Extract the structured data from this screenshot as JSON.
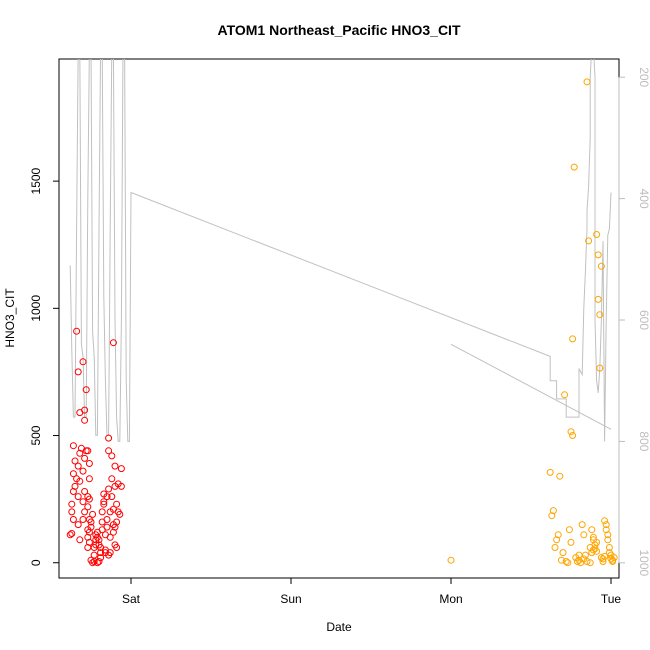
{
  "chart_data": {
    "type": "scatter",
    "title": "ATOM1 Northeast_Pacific HNO3_CIT",
    "xlabel": "Date",
    "ylabel": "HNO3_CIT",
    "x_range_days": [
      -0.45,
      3.05
    ],
    "ylim": [
      -60,
      1980
    ],
    "x_ticks": [
      {
        "value": 0,
        "label": "Sat"
      },
      {
        "value": 1,
        "label": "Sun"
      },
      {
        "value": 2,
        "label": "Mon"
      },
      {
        "value": 3,
        "label": "Tue"
      }
    ],
    "y_ticks": [
      0,
      500,
      1000,
      1500
    ],
    "secondary_axis": {
      "side": "right",
      "inverted": true,
      "ticks": [
        200,
        400,
        600,
        800,
        1000
      ],
      "ylim": [
        1025,
        170
      ],
      "color": "#bdbdbd"
    },
    "series": [
      {
        "color": "#ff0000",
        "points": [
          [
            -0.38,
            110
          ],
          [
            -0.37,
            115
          ],
          [
            -0.37,
            200
          ],
          [
            -0.36,
            170
          ],
          [
            -0.37,
            230
          ],
          [
            -0.36,
            280
          ],
          [
            -0.35,
            300
          ],
          [
            -0.34,
            330
          ],
          [
            -0.36,
            350
          ],
          [
            -0.35,
            400
          ],
          [
            -0.36,
            460
          ],
          [
            -0.34,
            910
          ],
          [
            -0.33,
            150
          ],
          [
            -0.32,
            90
          ],
          [
            -0.33,
            260
          ],
          [
            -0.32,
            320
          ],
          [
            -0.33,
            380
          ],
          [
            -0.32,
            430
          ],
          [
            -0.31,
            450
          ],
          [
            -0.32,
            590
          ],
          [
            -0.33,
            750
          ],
          [
            -0.3,
            170
          ],
          [
            -0.29,
            200
          ],
          [
            -0.3,
            240
          ],
          [
            -0.29,
            280
          ],
          [
            -0.3,
            360
          ],
          [
            -0.29,
            410
          ],
          [
            -0.28,
            440
          ],
          [
            -0.29,
            560
          ],
          [
            -0.29,
            600
          ],
          [
            -0.3,
            790
          ],
          [
            -0.28,
            680
          ],
          [
            -0.27,
            130
          ],
          [
            -0.26,
            170
          ],
          [
            -0.27,
            220
          ],
          [
            -0.26,
            250
          ],
          [
            -0.27,
            260
          ],
          [
            -0.26,
            330
          ],
          [
            -0.27,
            440
          ],
          [
            -0.26,
            390
          ],
          [
            -0.27,
            60
          ],
          [
            -0.26,
            80
          ],
          [
            -0.27,
            100
          ],
          [
            -0.26,
            120
          ],
          [
            -0.25,
            10
          ],
          [
            -0.25,
            140
          ],
          [
            -0.25,
            160
          ],
          [
            -0.24,
            190
          ],
          [
            -0.24,
            0
          ],
          [
            -0.23,
            5
          ],
          [
            -0.23,
            30
          ],
          [
            -0.23,
            60
          ],
          [
            -0.22,
            70
          ],
          [
            -0.22,
            90
          ],
          [
            -0.22,
            110
          ],
          [
            -0.21,
            100
          ],
          [
            -0.21,
            120
          ],
          [
            -0.21,
            0
          ],
          [
            -0.2,
            5
          ],
          [
            -0.2,
            70
          ],
          [
            -0.2,
            90
          ],
          [
            -0.19,
            20
          ],
          [
            -0.19,
            40
          ],
          [
            -0.19,
            60
          ],
          [
            -0.18,
            130
          ],
          [
            -0.18,
            160
          ],
          [
            -0.18,
            200
          ],
          [
            -0.17,
            230
          ],
          [
            -0.17,
            240
          ],
          [
            -0.17,
            270
          ],
          [
            -0.16,
            40
          ],
          [
            -0.16,
            50
          ],
          [
            -0.16,
            110
          ],
          [
            -0.15,
            140
          ],
          [
            -0.15,
            170
          ],
          [
            -0.15,
            260
          ],
          [
            -0.14,
            290
          ],
          [
            -0.14,
            440
          ],
          [
            -0.14,
            490
          ],
          [
            -0.14,
            30
          ],
          [
            -0.13,
            40
          ],
          [
            -0.13,
            100
          ],
          [
            -0.13,
            200
          ],
          [
            -0.12,
            260
          ],
          [
            -0.12,
            330
          ],
          [
            -0.12,
            420
          ],
          [
            -0.11,
            120
          ],
          [
            -0.11,
            150
          ],
          [
            -0.11,
            210
          ],
          [
            -0.1,
            70
          ],
          [
            -0.1,
            140
          ],
          [
            -0.1,
            300
          ],
          [
            -0.1,
            380
          ],
          [
            -0.11,
            865
          ],
          [
            -0.09,
            60
          ],
          [
            -0.09,
            160
          ],
          [
            -0.09,
            230
          ],
          [
            -0.08,
            200
          ],
          [
            -0.08,
            310
          ],
          [
            -0.07,
            190
          ],
          [
            -0.06,
            300
          ],
          [
            -0.06,
            370
          ]
        ]
      },
      {
        "color": "#ffa500",
        "points": [
          [
            2.0,
            10
          ],
          [
            2.62,
            355
          ],
          [
            2.63,
            185
          ],
          [
            2.64,
            205
          ],
          [
            2.65,
            60
          ],
          [
            2.66,
            90
          ],
          [
            2.67,
            110
          ],
          [
            2.68,
            340
          ],
          [
            2.69,
            10
          ],
          [
            2.7,
            40
          ],
          [
            2.71,
            660
          ],
          [
            2.72,
            5
          ],
          [
            2.73,
            0
          ],
          [
            2.74,
            130
          ],
          [
            2.75,
            80
          ],
          [
            2.75,
            515
          ],
          [
            2.76,
            500
          ],
          [
            2.76,
            880
          ],
          [
            2.77,
            1555
          ],
          [
            2.78,
            20
          ],
          [
            2.79,
            5
          ],
          [
            2.8,
            10
          ],
          [
            2.81,
            0
          ],
          [
            2.82,
            150
          ],
          [
            2.83,
            110
          ],
          [
            2.84,
            30
          ],
          [
            2.85,
            1890
          ],
          [
            2.86,
            1265
          ],
          [
            2.87,
            60
          ],
          [
            2.88,
            130
          ],
          [
            2.88,
            40
          ],
          [
            2.89,
            90
          ],
          [
            2.89,
            100
          ],
          [
            2.9,
            70
          ],
          [
            2.9,
            55
          ],
          [
            2.91,
            45
          ],
          [
            2.91,
            1290
          ],
          [
            2.92,
            1210
          ],
          [
            2.92,
            1035
          ],
          [
            2.93,
            765
          ],
          [
            2.93,
            975
          ],
          [
            2.94,
            1165
          ],
          [
            2.94,
            20
          ],
          [
            2.95,
            5
          ],
          [
            2.95,
            15
          ],
          [
            2.96,
            25
          ],
          [
            2.96,
            165
          ],
          [
            2.97,
            150
          ],
          [
            2.97,
            130
          ],
          [
            2.98,
            110
          ],
          [
            2.98,
            90
          ],
          [
            2.99,
            60
          ],
          [
            2.99,
            40
          ],
          [
            3.0,
            30
          ],
          [
            3.0,
            15
          ],
          [
            3.01,
            10
          ],
          [
            3.01,
            5
          ],
          [
            3.02,
            20
          ],
          [
            2.8,
            30
          ],
          [
            2.83,
            15
          ],
          [
            2.85,
            5
          ],
          [
            2.87,
            0
          ],
          [
            2.89,
            50
          ],
          [
            2.91,
            80
          ]
        ]
      }
    ],
    "pressure_lines": [
      {
        "color": "#c0c0c0",
        "points": [
          [
            -0.38,
            510
          ],
          [
            -0.37,
            650
          ],
          [
            -0.36,
            760
          ],
          [
            -0.35,
            760
          ],
          [
            -0.34,
            450
          ],
          [
            -0.33,
            150
          ],
          [
            -0.32,
            150
          ],
          [
            -0.31,
            640
          ],
          [
            -0.3,
            660
          ],
          [
            -0.29,
            760
          ],
          [
            -0.28,
            760
          ],
          [
            -0.27,
            400
          ],
          [
            -0.26,
            150
          ],
          [
            -0.25,
            150
          ],
          [
            -0.24,
            620
          ],
          [
            -0.23,
            660
          ],
          [
            -0.22,
            790
          ],
          [
            -0.21,
            790
          ],
          [
            -0.2,
            450
          ],
          [
            -0.19,
            150
          ],
          [
            -0.18,
            150
          ],
          [
            -0.17,
            560
          ],
          [
            -0.16,
            700
          ],
          [
            -0.15,
            790
          ],
          [
            -0.14,
            790
          ],
          [
            -0.13,
            450
          ],
          [
            -0.12,
            150
          ],
          [
            -0.11,
            150
          ],
          [
            -0.1,
            600
          ],
          [
            -0.09,
            760
          ],
          [
            -0.08,
            800
          ],
          [
            -0.07,
            800
          ],
          [
            -0.06,
            600
          ],
          [
            -0.05,
            150
          ],
          [
            -0.04,
            150
          ],
          [
            -0.03,
            700
          ],
          [
            -0.02,
            800
          ],
          [
            -0.01,
            800
          ],
          [
            0.0,
            390
          ],
          [
            2.62,
            660
          ],
          [
            2.62,
            700
          ],
          [
            2.66,
            700
          ],
          [
            2.66,
            730
          ],
          [
            2.72,
            730
          ],
          [
            2.72,
            760
          ],
          [
            2.8,
            760
          ],
          [
            2.8,
            680
          ],
          [
            2.82,
            690
          ],
          [
            2.83,
            580
          ],
          [
            2.84,
            520
          ],
          [
            2.85,
            450
          ],
          [
            2.85,
            420
          ],
          [
            2.86,
            380
          ],
          [
            2.87,
            300
          ],
          [
            2.87,
            200
          ],
          [
            2.88,
            150
          ],
          [
            2.89,
            150
          ],
          [
            2.9,
            200
          ],
          [
            2.9,
            600
          ],
          [
            2.91,
            700
          ],
          [
            2.92,
            720
          ],
          [
            2.93,
            680
          ],
          [
            2.94,
            600
          ],
          [
            2.95,
            470
          ],
          [
            2.96,
            800
          ],
          [
            2.97,
            600
          ],
          [
            2.98,
            460
          ],
          [
            2.99,
            450
          ],
          [
            3.0,
            390
          ]
        ]
      },
      {
        "color": "#c0c0c0",
        "points": [
          [
            2.0,
            640
          ],
          [
            3.0,
            780
          ]
        ]
      }
    ]
  }
}
